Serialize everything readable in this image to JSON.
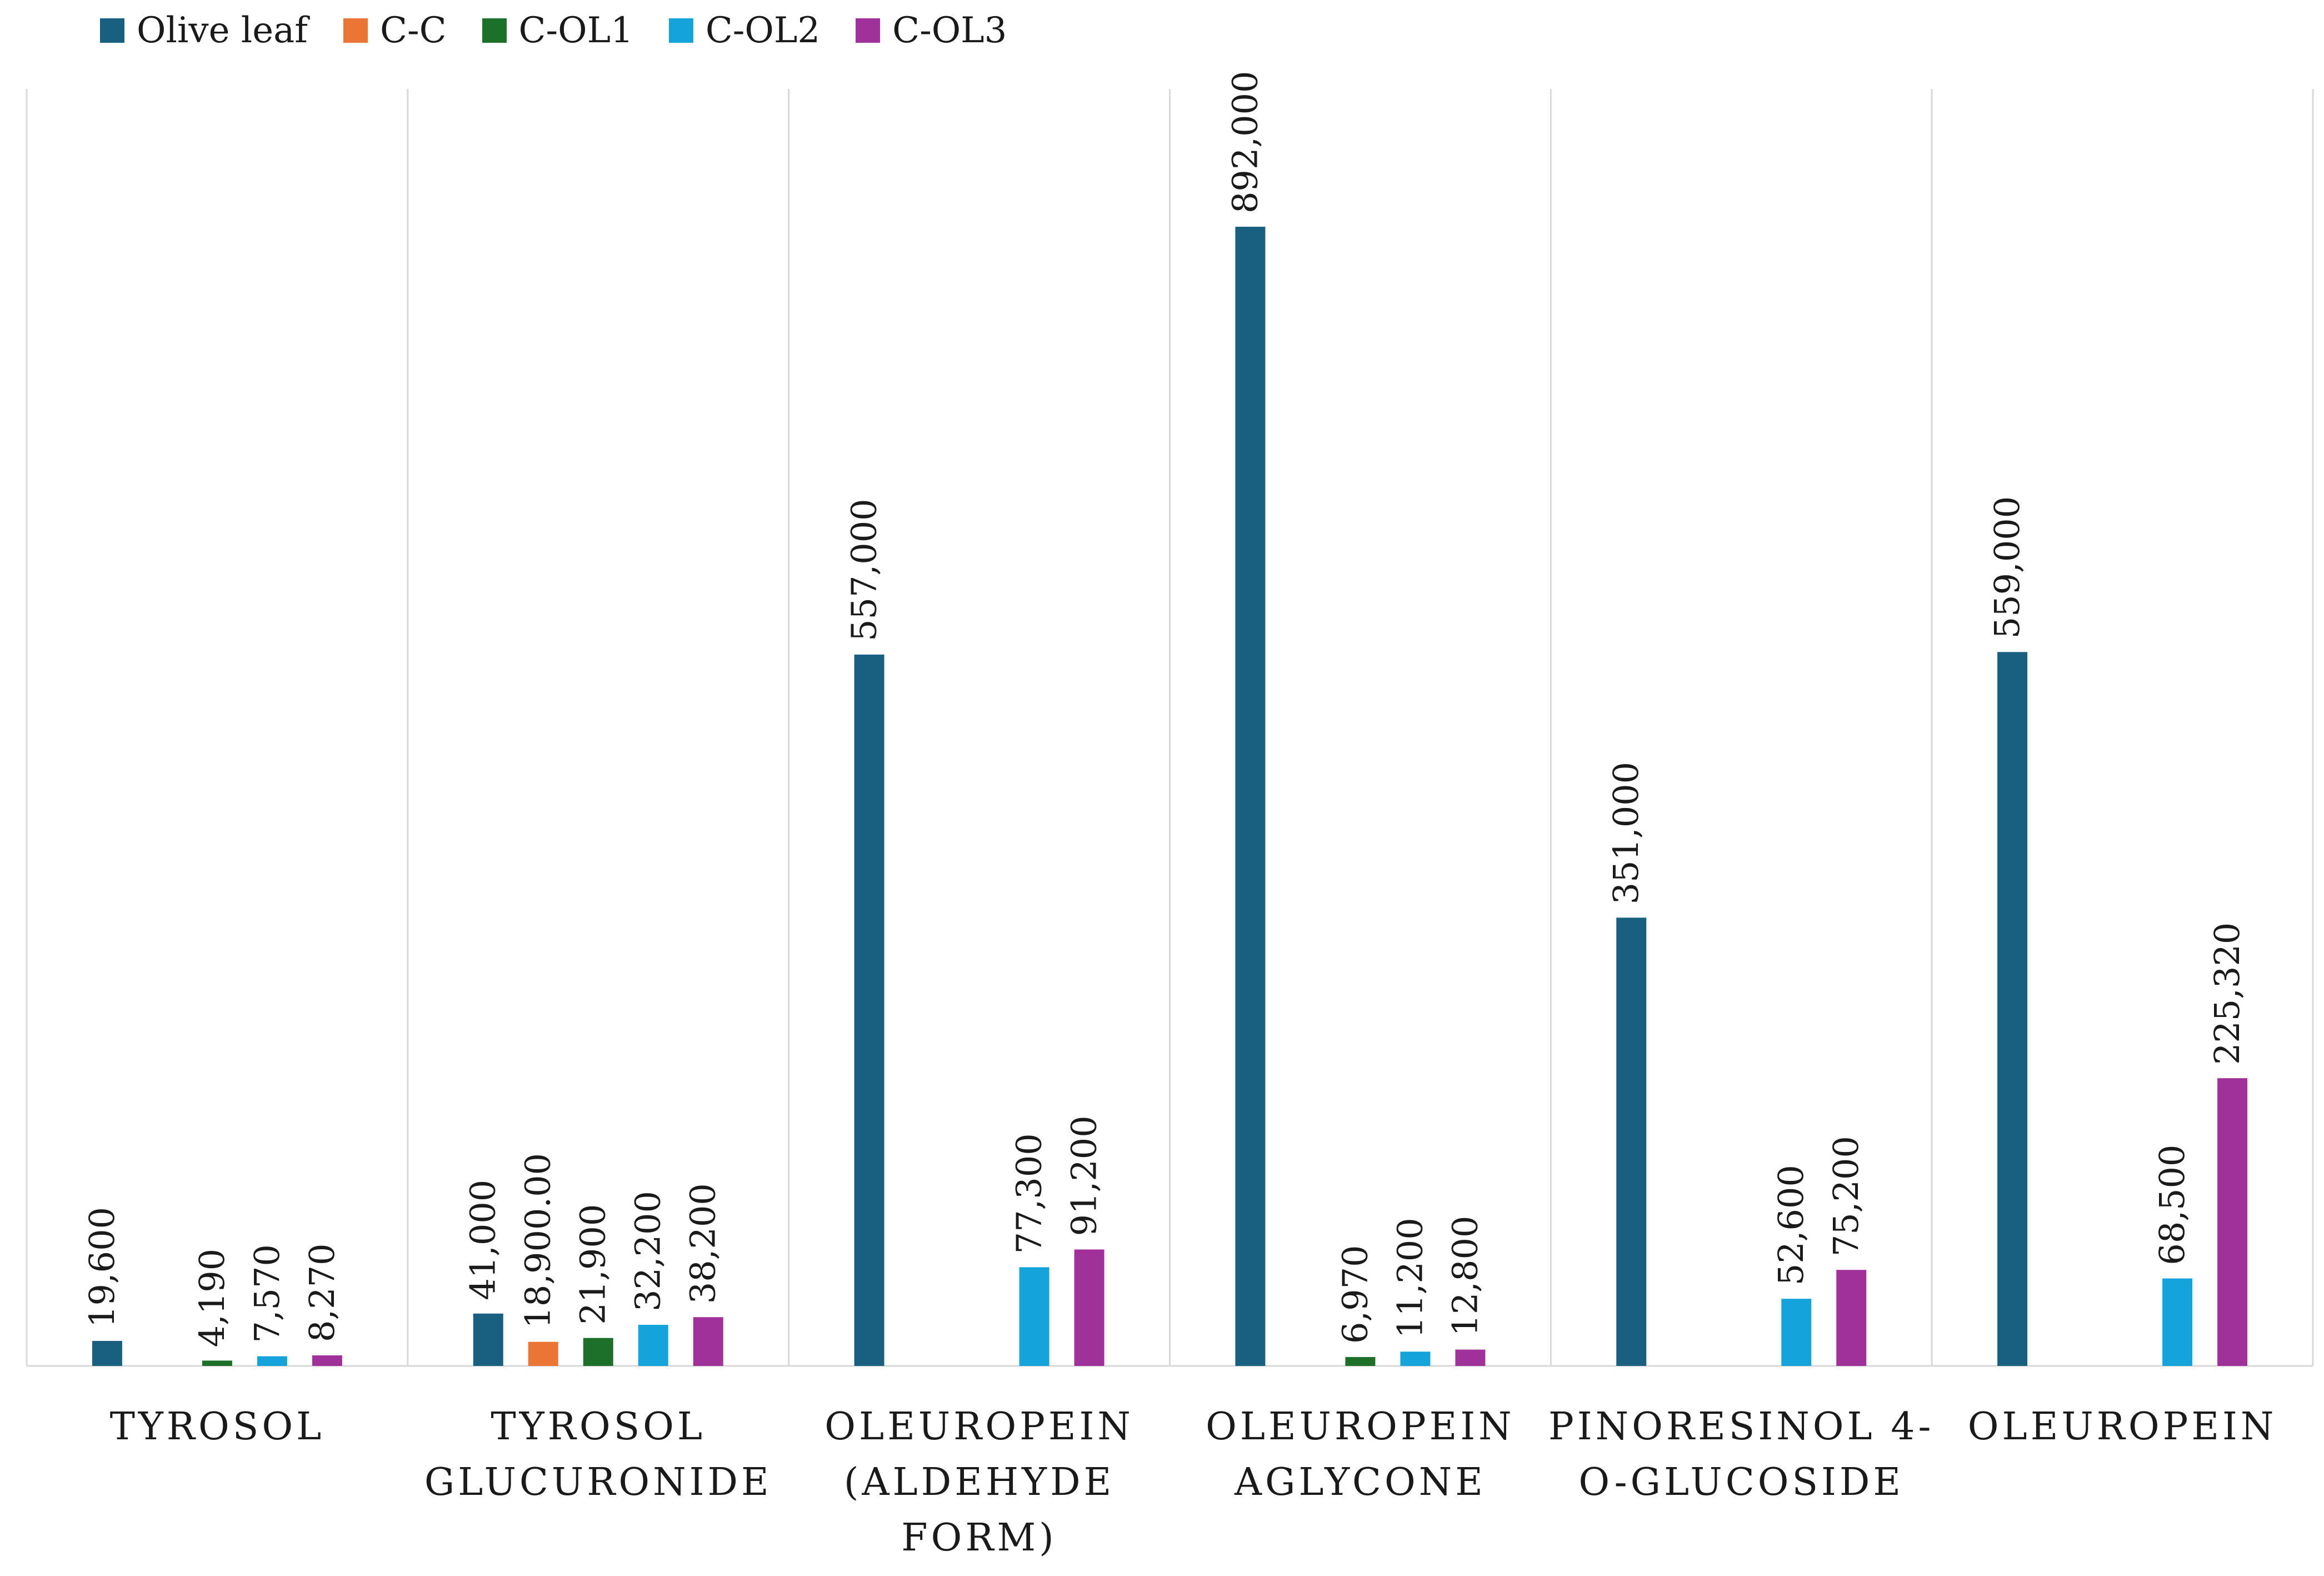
{
  "chart_data": {
    "type": "bar",
    "categories": [
      [
        "TYROSOL"
      ],
      [
        "TYROSOL",
        "GLUCURONIDE"
      ],
      [
        "OLEUROPEIN",
        "(ALDEHYDE",
        "FORM)"
      ],
      [
        "OLEUROPEIN",
        "AGLYCONE"
      ],
      [
        "PINORESINOL 4-",
        "O-GLUCOSIDE"
      ],
      [
        "OLEUROPEIN"
      ]
    ],
    "series": [
      {
        "name": "Olive leaf",
        "color": "#185f80",
        "values": [
          19600,
          41000,
          557000,
          892000,
          351000,
          559000
        ],
        "labels": [
          "19,600",
          "41,000",
          "557,000",
          "892,000",
          "351,000",
          "559,000"
        ]
      },
      {
        "name": "C-C",
        "color": "#eb7535",
        "values": [
          null,
          18900,
          null,
          null,
          null,
          null
        ],
        "labels": [
          null,
          "18,900.00",
          null,
          null,
          null,
          null
        ]
      },
      {
        "name": "C-OL1",
        "color": "#1c7029",
        "values": [
          4190,
          21900,
          null,
          6970,
          null,
          null
        ],
        "labels": [
          "4,190",
          "21,900",
          null,
          "6,970",
          null,
          null
        ]
      },
      {
        "name": "C-OL2",
        "color": "#14a3da",
        "values": [
          7570,
          32200,
          77300,
          11200,
          52600,
          68500
        ],
        "labels": [
          "7,570",
          "32,200",
          "77,300",
          "11,200",
          "52,600",
          "68,500"
        ]
      },
      {
        "name": "C-OL3",
        "color": "#a1319a",
        "values": [
          8270,
          38200,
          91200,
          12800,
          75200,
          225320
        ],
        "labels": [
          "8,270",
          "38,200",
          "91,200",
          "12,800",
          "75,200",
          "225,320"
        ]
      }
    ],
    "ylim": [
      0,
      1000000
    ],
    "legend": "top-left",
    "grid": "vertical category separators",
    "title": "",
    "xlabel": "",
    "ylabel": ""
  }
}
